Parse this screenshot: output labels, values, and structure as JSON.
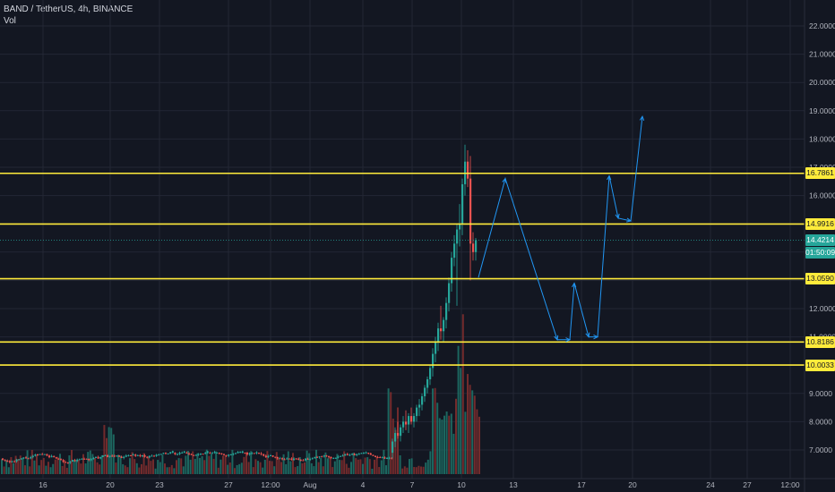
{
  "header": {
    "symbol_line": "BAND / TetherUS, 4h, BINANCE",
    "indicator": "Vol"
  },
  "colors": {
    "background": "#131722",
    "grid": "#232734",
    "up": "#26a69a",
    "down": "#ef5350",
    "level": "#ffeb3b",
    "projection": "#2196f3",
    "axis_text": "#b2b5be"
  },
  "chart_data": {
    "type": "candlestick",
    "title": "BAND / TetherUS, 4h, BINANCE",
    "grid": true,
    "x_ticks": [
      "16",
      "20",
      "23",
      "27",
      "12:00",
      "Aug",
      "4",
      "7",
      "10",
      "13",
      "17",
      "20",
      "24",
      "27",
      "12:00"
    ],
    "y_ticks": [
      "22.0000",
      "21.0000",
      "20.0000",
      "19.0000",
      "18.0000",
      "17.0000",
      "16.0000",
      "15.0000",
      "14.0000",
      "13.0000",
      "12.0000",
      "11.0000",
      "10.0000",
      "9.0000",
      "8.0000",
      "7.0000"
    ],
    "ylim": [
      6.0,
      23.0
    ],
    "current_price": {
      "value": "14.4214",
      "countdown": "01:50:09"
    },
    "levels": [
      "16.7861",
      "14.9916",
      "13.0590",
      "10.8186",
      "10.0033"
    ],
    "candles_daily_approx": [
      {
        "date": "Aug 6",
        "open": 7.0,
        "high": 7.6,
        "low": 6.8,
        "close": 7.4
      },
      {
        "date": "Aug 7",
        "open": 7.4,
        "high": 8.3,
        "low": 7.2,
        "close": 8.1
      },
      {
        "date": "Aug 8",
        "open": 8.1,
        "high": 11.4,
        "low": 8.0,
        "close": 11.1
      },
      {
        "date": "Aug 9",
        "open": 11.1,
        "high": 14.9,
        "low": 10.9,
        "close": 14.5
      },
      {
        "date": "Aug 10",
        "open": 14.5,
        "high": 17.8,
        "low": 13.9,
        "close": 16.5
      },
      {
        "date": "Aug 10 late",
        "open": 16.6,
        "high": 17.3,
        "low": 13.7,
        "close": 14.42
      }
    ],
    "projection_path": [
      {
        "x": "10",
        "y": 13.1
      },
      {
        "x": "12",
        "y": 16.6
      },
      {
        "x": "15",
        "y": 10.9
      },
      {
        "x": "16",
        "y": 10.9
      },
      {
        "x": "16.3",
        "y": 12.9
      },
      {
        "x": "17",
        "y": 11.0
      },
      {
        "x": "17.5",
        "y": 11.0
      },
      {
        "x": "18.5",
        "y": 16.7
      },
      {
        "x": "19",
        "y": 15.2
      },
      {
        "x": "19.5",
        "y": 15.1
      },
      {
        "x": "20.3",
        "y": 18.8
      }
    ]
  }
}
